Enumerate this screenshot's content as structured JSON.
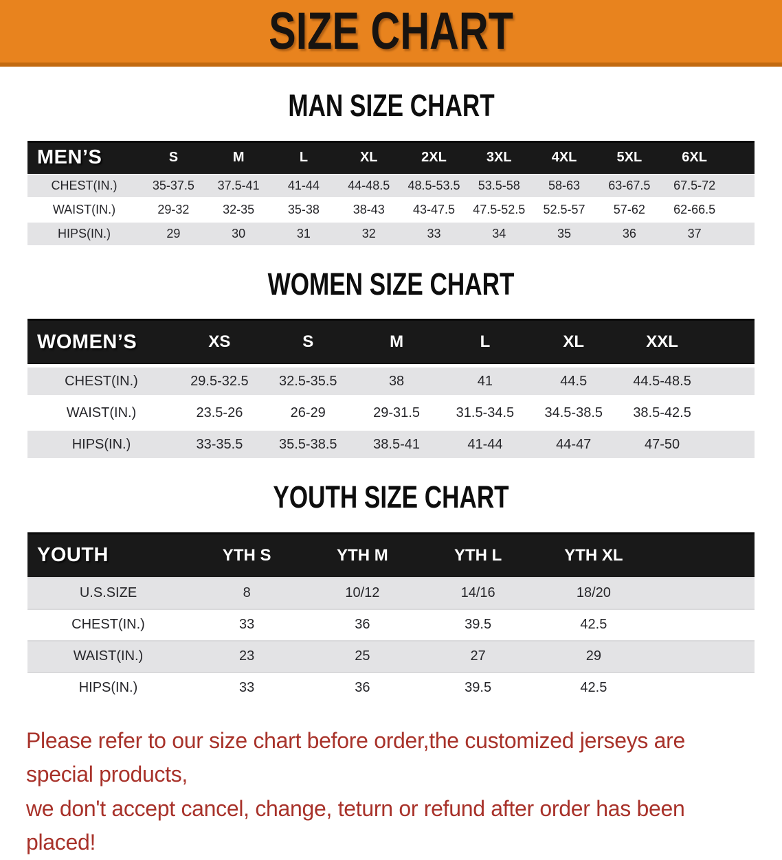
{
  "banner": {
    "title": "SIZE CHART",
    "bg_color": "#E8831E",
    "edge_color": "#C26A10"
  },
  "sections": {
    "men": {
      "heading": "MAN SIZE CHART",
      "header": {
        "label": "MEN’S",
        "sizes": [
          "S",
          "M",
          "L",
          "XL",
          "2XL",
          "3XL",
          "4XL",
          "5XL",
          "6XL"
        ]
      },
      "rows": [
        {
          "label": "CHEST(IN.)",
          "cells": [
            "35-37.5",
            "37.5-41",
            "41-44",
            "44-48.5",
            "48.5-53.5",
            "53.5-58",
            "58-63",
            "63-67.5",
            "67.5-72"
          ]
        },
        {
          "label": "WAIST(IN.)",
          "cells": [
            "29-32",
            "32-35",
            "35-38",
            "38-43",
            "43-47.5",
            "47.5-52.5",
            "52.5-57",
            "57-62",
            "62-66.5"
          ]
        },
        {
          "label": "HIPS(IN.)",
          "cells": [
            "29",
            "30",
            "31",
            "32",
            "33",
            "34",
            "35",
            "36",
            "37"
          ]
        }
      ]
    },
    "women": {
      "heading": "WOMEN SIZE CHART",
      "header": {
        "label": "WOMEN’S",
        "sizes": [
          "XS",
          "S",
          "M",
          "L",
          "XL",
          "XXL"
        ]
      },
      "rows": [
        {
          "label": "CHEST(IN.)",
          "cells": [
            "29.5-32.5",
            "32.5-35.5",
            "38",
            "41",
            "44.5",
            "44.5-48.5"
          ]
        },
        {
          "label": "WAIST(IN.)",
          "cells": [
            "23.5-26",
            "26-29",
            "29-31.5",
            "31.5-34.5",
            "34.5-38.5",
            "38.5-42.5"
          ]
        },
        {
          "label": "HIPS(IN.)",
          "cells": [
            "33-35.5",
            "35.5-38.5",
            "38.5-41",
            "41-44",
            "44-47",
            "47-50"
          ]
        }
      ]
    },
    "youth": {
      "heading": "YOUTH SIZE CHART",
      "header": {
        "label": "YOUTH",
        "sizes": [
          "YTH S",
          "YTH M",
          "YTH L",
          "YTH XL"
        ]
      },
      "rows": [
        {
          "label": "U.S.SIZE",
          "cells": [
            "8",
            "10/12",
            "14/16",
            "18/20"
          ]
        },
        {
          "label": "CHEST(IN.)",
          "cells": [
            "33",
            "36",
            "39.5",
            "42.5"
          ]
        },
        {
          "label": "WAIST(IN.)",
          "cells": [
            "23",
            "25",
            "27",
            "29"
          ]
        },
        {
          "label": "HIPS(IN.)",
          "cells": [
            "33",
            "36",
            "39.5",
            "42.5"
          ]
        }
      ]
    }
  },
  "footer": {
    "line1": "Please refer to our size chart before order,the customized jerseys are special products,",
    "line2": "we don't accept cancel, change, teturn or refund after order has been placed!",
    "text_color": "#A8322A"
  }
}
